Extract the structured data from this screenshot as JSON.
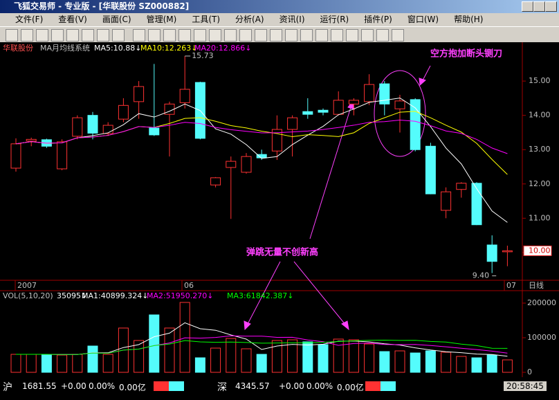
{
  "window": {
    "title": "飞狐交易师 - 专业版 - [华联股份 SZ000882]"
  },
  "menu": [
    "文件(F)",
    "查看(V)",
    "画面(C)",
    "管理(M)",
    "工具(T)",
    "分析(A)",
    "资讯(I)",
    "运行(R)",
    "插件(P)",
    "窗口(W)",
    "帮助(H)"
  ],
  "chart": {
    "type": "candlestick",
    "stock": "华联股份",
    "indicator": "MA月均线系统",
    "ma_labels": [
      {
        "text": "MA5:10.88↓",
        "color": "#ffffff"
      },
      {
        "text": "MA10:12.263↓",
        "color": "#ffff00"
      },
      {
        "text": "MA20:12.866↓",
        "color": "#ff00ff"
      }
    ],
    "periods": [
      5,
      10,
      20
    ],
    "open": [
      12.46,
      13.25,
      13.29,
      12.44,
      13.39,
      14.0,
      13.47,
      13.89,
      14.4,
      13.63,
      14.03,
      14.37,
      14.96,
      11.97,
      12.48,
      12.34,
      12.86,
      12.96,
      13.59,
      14.11,
      14.15,
      14.03,
      14.33,
      14.4,
      14.92,
      14.19,
      14.46,
      13.1,
      11.23,
      11.84,
      12.02,
      10.22,
      10.02
    ],
    "high": [
      13.33,
      13.35,
      13.32,
      13.3,
      14.0,
      14.1,
      13.8,
      14.5,
      15.0,
      15.5,
      14.4,
      15.73,
      14.98,
      12.2,
      12.8,
      12.9,
      13.0,
      14.0,
      14.0,
      14.5,
      14.2,
      14.7,
      14.5,
      15.2,
      15.0,
      14.6,
      14.5,
      13.2,
      11.9,
      12.05,
      12.05,
      10.5,
      10.2
    ],
    "low": [
      12.36,
      13.1,
      13.05,
      12.4,
      13.3,
      13.3,
      13.4,
      13.8,
      13.9,
      13.4,
      12.8,
      14.2,
      13.3,
      11.9,
      10.98,
      12.3,
      12.7,
      12.7,
      12.8,
      13.9,
      14.0,
      14.0,
      14.0,
      14.3,
      14.0,
      13.5,
      12.95,
      11.7,
      11.0,
      11.6,
      10.8,
      9.4,
      9.6
    ],
    "close": [
      13.17,
      13.3,
      13.1,
      13.23,
      13.93,
      13.48,
      13.71,
      14.29,
      14.84,
      13.43,
      14.33,
      14.76,
      13.33,
      12.18,
      12.66,
      12.8,
      12.76,
      13.59,
      13.93,
      14.03,
      14.09,
      14.44,
      14.44,
      14.9,
      14.33,
      14.42,
      13.0,
      11.71,
      11.77,
      12.02,
      10.81,
      9.74,
      10.05
    ],
    "ylim": [
      9.19,
      15.79
    ],
    "yticks": [
      {
        "value": 10,
        "label": "10.00"
      },
      {
        "value": 11,
        "label": "11.00"
      },
      {
        "value": 12,
        "label": "12.00"
      },
      {
        "value": 13,
        "label": "13.00"
      },
      {
        "value": 14,
        "label": "14.00"
      },
      {
        "value": 15,
        "label": "15.00"
      }
    ],
    "high_label": "15.73",
    "low_label": "9.40",
    "last_price": "10.00",
    "x_labels": [
      "2007",
      "06",
      "07"
    ],
    "period_label": "日线",
    "annotations": [
      "空方抱加断头铡刀",
      "弹跳无量不创新高"
    ],
    "vol_header": [
      {
        "text": "VOL(5,10,20)",
        "color": "#c0c0c0"
      },
      {
        "text": "35095↓",
        "color": "#ffffff"
      },
      {
        "text": "MA1:40899.324↓",
        "color": "#ffffff"
      },
      {
        "text": "MA2:51950.270↓",
        "color": "#ff00ff"
      },
      {
        "text": "MA3:61842.387↓",
        "color": "#00ff00"
      }
    ],
    "volume": [
      52000,
      52000,
      52000,
      50000,
      52000,
      76000,
      52000,
      128000,
      92000,
      166000,
      128000,
      202000,
      42000,
      70000,
      98000,
      68000,
      52000,
      92000,
      94000,
      88000,
      80000,
      96000,
      94000,
      82000,
      60000,
      62000,
      56000,
      62000,
      58000,
      46000,
      42000,
      50000,
      36000
    ],
    "vol_ylim": [
      0,
      212000
    ],
    "vol_yticks": [
      0,
      100000,
      200000
    ]
  },
  "status": {
    "sh": [
      "沪",
      "1681.55",
      "+0.00",
      "0.00%",
      "0.00亿"
    ],
    "sz": [
      "深",
      "4345.57",
      "+0.00",
      "0.00%",
      "0.00亿"
    ],
    "time": "20:58:45"
  }
}
